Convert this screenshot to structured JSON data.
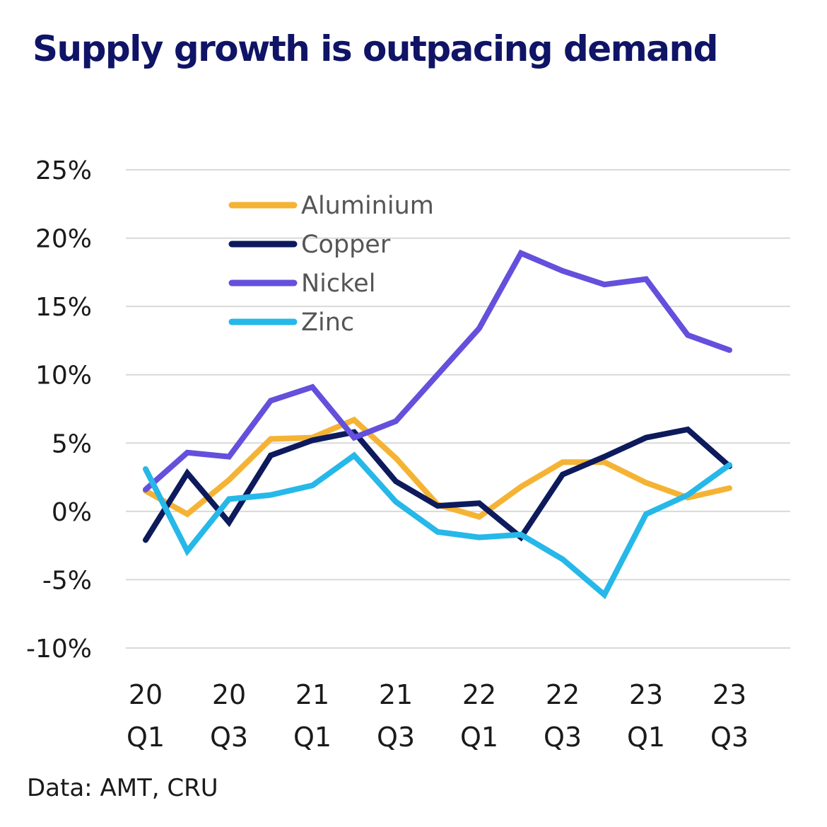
{
  "title": "Supply growth is outpacing demand",
  "source": "Data: AMT, CRU",
  "colors": {
    "title": "#0f1466",
    "gridline": "#d9d9d9"
  },
  "chart_data": {
    "type": "line",
    "title": "Supply growth is outpacing demand",
    "xlabel": "",
    "ylabel": "",
    "ylim": [
      -10,
      25
    ],
    "y_ticks": [
      25,
      20,
      15,
      10,
      5,
      0,
      -5,
      -10
    ],
    "y_tick_labels": [
      "25%",
      "20%",
      "15%",
      "10%",
      "5%",
      "0%",
      "-5%",
      "-10%"
    ],
    "y_unit": "%",
    "grid": true,
    "legend_position": "top-left",
    "x": [
      "20 Q1",
      "20 Q2",
      "20 Q3",
      "20 Q4",
      "21 Q1",
      "21 Q2",
      "21 Q3",
      "21 Q4",
      "22 Q1",
      "22 Q2",
      "22 Q3",
      "22 Q4",
      "23 Q1",
      "23 Q2",
      "23 Q3"
    ],
    "x_tick_labels": [
      {
        "x": "20 Q1",
        "line1": "20",
        "line2": "Q1"
      },
      {
        "x": "20 Q3",
        "line1": "20",
        "line2": "Q3"
      },
      {
        "x": "21 Q1",
        "line1": "21",
        "line2": "Q1"
      },
      {
        "x": "21 Q3",
        "line1": "21",
        "line2": "Q3"
      },
      {
        "x": "22 Q1",
        "line1": "22",
        "line2": "Q1"
      },
      {
        "x": "22 Q3",
        "line1": "22",
        "line2": "Q3"
      },
      {
        "x": "23 Q1",
        "line1": "23",
        "line2": "Q1"
      },
      {
        "x": "23 Q3",
        "line1": "23",
        "line2": "Q3"
      }
    ],
    "series": [
      {
        "name": "Aluminium",
        "color": "#f5b335",
        "values": [
          1.5,
          -0.2,
          2.3,
          5.3,
          5.4,
          6.7,
          3.9,
          0.5,
          -0.4,
          1.8,
          3.6,
          3.6,
          2.1,
          1.0,
          1.7
        ]
      },
      {
        "name": "Copper",
        "color": "#0d1a5c",
        "values": [
          -2.1,
          2.8,
          -0.8,
          4.1,
          5.2,
          5.8,
          2.2,
          0.4,
          0.6,
          -1.9,
          2.7,
          4.0,
          5.4,
          6.0,
          3.3
        ]
      },
      {
        "name": "Nickel",
        "color": "#6450dc",
        "values": [
          1.6,
          4.3,
          4.0,
          8.1,
          9.1,
          5.4,
          6.6,
          10.0,
          13.4,
          18.9,
          17.6,
          16.6,
          17.0,
          12.9,
          11.8
        ]
      },
      {
        "name": "Zinc",
        "color": "#26b8e8",
        "values": [
          3.1,
          -2.9,
          0.9,
          1.2,
          1.9,
          4.1,
          0.7,
          -1.5,
          -1.9,
          -1.7,
          -3.5,
          -6.1,
          -0.2,
          1.2,
          3.4
        ]
      }
    ]
  }
}
